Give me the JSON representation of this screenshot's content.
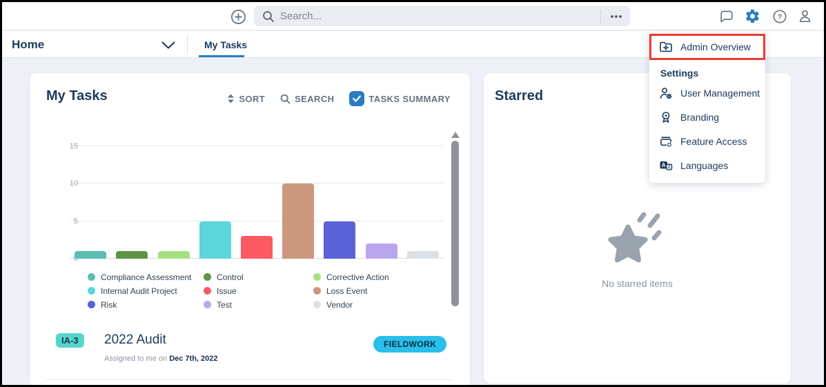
{
  "topbar": {
    "search": {
      "placeholder": "Search..."
    }
  },
  "nav": {
    "home": "Home",
    "active_tab": "My Tasks"
  },
  "admin_menu": {
    "admin_overview": "Admin Overview",
    "section_header": "Settings",
    "items": [
      "User Management",
      "Branding",
      "Feature Access",
      "Languages"
    ]
  },
  "my_tasks": {
    "title": "My Tasks",
    "sort_label": "SORT",
    "search_label": "SEARCH",
    "tasks_summary_label": "TASKS SUMMARY",
    "tasks_summary_checked": true,
    "task": {
      "id": "IA-3",
      "title": "2022 Audit",
      "assigned_prefix": "Assigned to me on",
      "assigned_date": "Dec 7th, 2022",
      "status": "FIELDWORK"
    }
  },
  "starred": {
    "title": "Starred",
    "empty_message": "No starred items"
  },
  "chart_data": {
    "type": "bar",
    "categories": [
      "Compliance Assessment",
      "Control",
      "Corrective Action",
      "Internal Audit Project",
      "Issue",
      "Loss Event",
      "Risk",
      "Test",
      "Vendor"
    ],
    "values": [
      1,
      1,
      1,
      5,
      3,
      10,
      5,
      2,
      1
    ],
    "colors": [
      "#5abfae",
      "#5d9445",
      "#a5e27d",
      "#5cd6dc",
      "#fc5a62",
      "#cb977f",
      "#5a62d6",
      "#b9a7f2",
      "#dce1e6"
    ],
    "yticks": [
      0,
      5,
      10,
      15
    ],
    "ylim": [
      0,
      16.9
    ],
    "grid": true,
    "legend_position": "bottom",
    "title": "",
    "xlabel": "",
    "ylabel": ""
  },
  "colors": {
    "accent_blue": "#2b7bc2",
    "navy_text": "#1b3a5c",
    "highlight_red": "#ec3a30",
    "id_badge_bg": "#55d6cb",
    "status_badge_bg": "#29bfea"
  }
}
